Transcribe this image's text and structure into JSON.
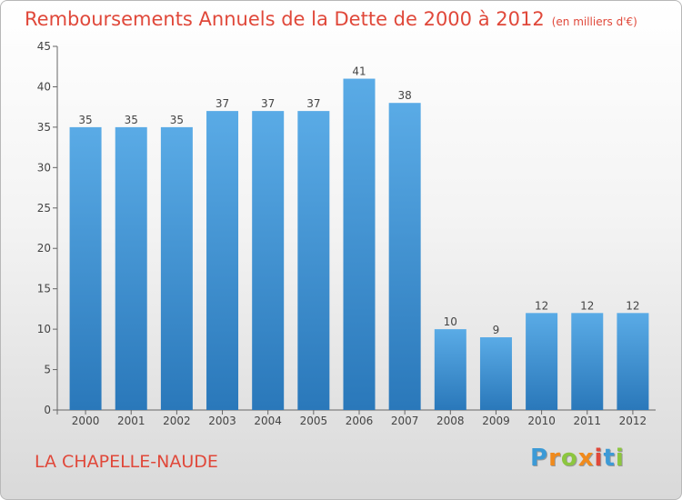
{
  "chart_data": {
    "type": "bar",
    "title": "Remboursements Annuels de la Dette de 2000 à 2012",
    "subtitle": "(en milliers d'€)",
    "categories": [
      "2000",
      "2001",
      "2002",
      "2003",
      "2004",
      "2005",
      "2006",
      "2007",
      "2008",
      "2009",
      "2010",
      "2011",
      "2012"
    ],
    "values": [
      35,
      35,
      35,
      37,
      37,
      37,
      41,
      38,
      10,
      9,
      12,
      12,
      12
    ],
    "ylim": [
      0,
      45
    ],
    "yticks": [
      0,
      5,
      10,
      15,
      20,
      25,
      30,
      35,
      40,
      45
    ],
    "xlabel": "",
    "ylabel": "",
    "grid": false,
    "bar_color": "#5aabe6",
    "bar_color_dark": "#2a78ba"
  },
  "commune": "LA CHAPELLE-NAUDE",
  "logo": {
    "letters": [
      "P",
      "r",
      "o",
      "x",
      "i",
      "t",
      "i"
    ],
    "colors": [
      "#3c9ad6",
      "#f08a1c",
      "#8cc63f",
      "#f08a1c",
      "#e0483a",
      "#3c9ad6",
      "#8cc63f"
    ]
  }
}
